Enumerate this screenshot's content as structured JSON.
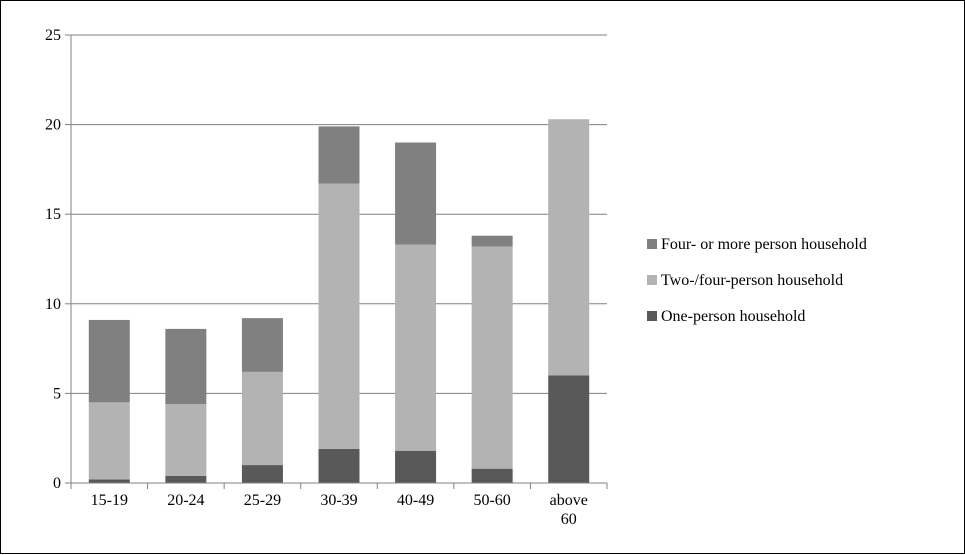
{
  "chart_data": {
    "type": "bar",
    "stacked": true,
    "categories": [
      "15-19",
      "20-24",
      "25-29",
      "30-39",
      "40-49",
      "50-60",
      "above 60"
    ],
    "category_lines": [
      [
        "15-19"
      ],
      [
        "20-24"
      ],
      [
        "25-29"
      ],
      [
        "30-39"
      ],
      [
        "40-49"
      ],
      [
        "50-60"
      ],
      [
        "above",
        "60"
      ]
    ],
    "series": [
      {
        "name": "One-person household",
        "color": "#595959",
        "values": [
          0.2,
          0.4,
          1.0,
          1.9,
          1.8,
          0.8,
          6.0
        ]
      },
      {
        "name": "Two-/four-person household",
        "color": "#b3b3b3",
        "values": [
          4.3,
          4.0,
          5.2,
          14.8,
          11.5,
          12.4,
          14.3
        ]
      },
      {
        "name": "Four- or more person household",
        "color": "#808080",
        "values": [
          4.6,
          4.2,
          3.0,
          3.2,
          5.7,
          0.6,
          0.0
        ]
      }
    ],
    "ylim": [
      0,
      25
    ],
    "yticks": [
      "0",
      "5",
      "10",
      "15",
      "20",
      "25"
    ],
    "title": "",
    "xlabel": "",
    "ylabel": "",
    "grid": true,
    "legend_position": "right"
  }
}
